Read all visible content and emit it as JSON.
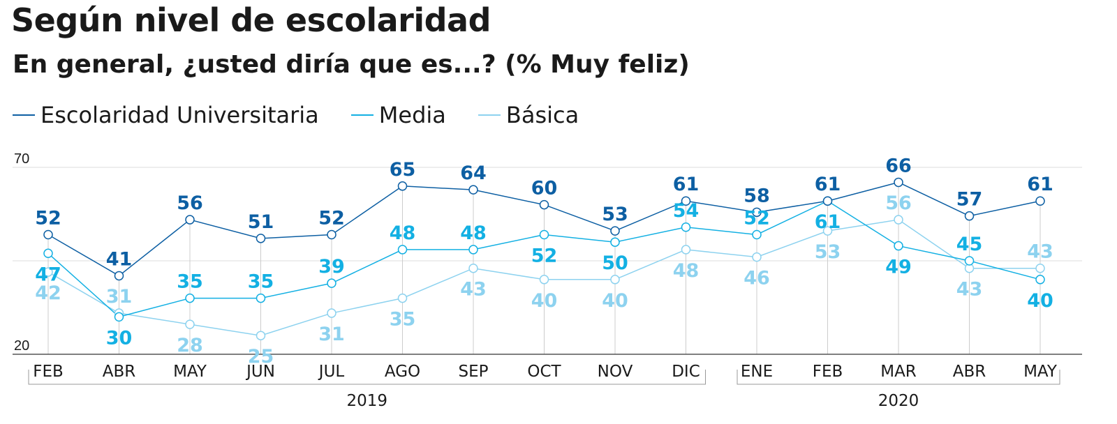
{
  "header": {
    "title": "Según nivel de escolaridad",
    "subtitle": "En general, ¿usted diría que es...? (% Muy feliz)"
  },
  "colors": {
    "universitaria": "#0d5fa3",
    "media": "#13b0e3",
    "basica": "#8dd2ef",
    "grid": "#dddddd",
    "axis": "#555555",
    "text": "#1a1a1a"
  },
  "chart_data": {
    "type": "line",
    "categories": [
      "FEB",
      "ABR",
      "MAY",
      "JUN",
      "JUL",
      "AGO",
      "SEP",
      "OCT",
      "NOV",
      "DIC",
      "ENE",
      "FEB",
      "MAR",
      "ABR",
      "MAY"
    ],
    "year_groups": [
      {
        "label": "2019",
        "from": 0,
        "to": 9
      },
      {
        "label": "2020",
        "from": 10,
        "to": 14
      }
    ],
    "series": [
      {
        "name": "Escolaridad Universitaria",
        "key": "universitaria",
        "values": [
          52,
          41,
          56,
          51,
          52,
          65,
          64,
          60,
          53,
          61,
          58,
          61,
          66,
          57,
          61
        ]
      },
      {
        "name": "Media",
        "key": "media",
        "values": [
          47,
          30,
          35,
          35,
          39,
          48,
          48,
          52,
          50,
          54,
          52,
          61,
          49,
          45,
          40
        ]
      },
      {
        "name": "Básica",
        "key": "basica",
        "values": [
          42,
          31,
          28,
          25,
          31,
          35,
          43,
          40,
          40,
          48,
          46,
          53,
          56,
          43,
          43
        ]
      }
    ],
    "ylim": [
      20,
      70
    ],
    "yticks": [
      20,
      70
    ],
    "legend_position": "top-left",
    "grid": true
  }
}
